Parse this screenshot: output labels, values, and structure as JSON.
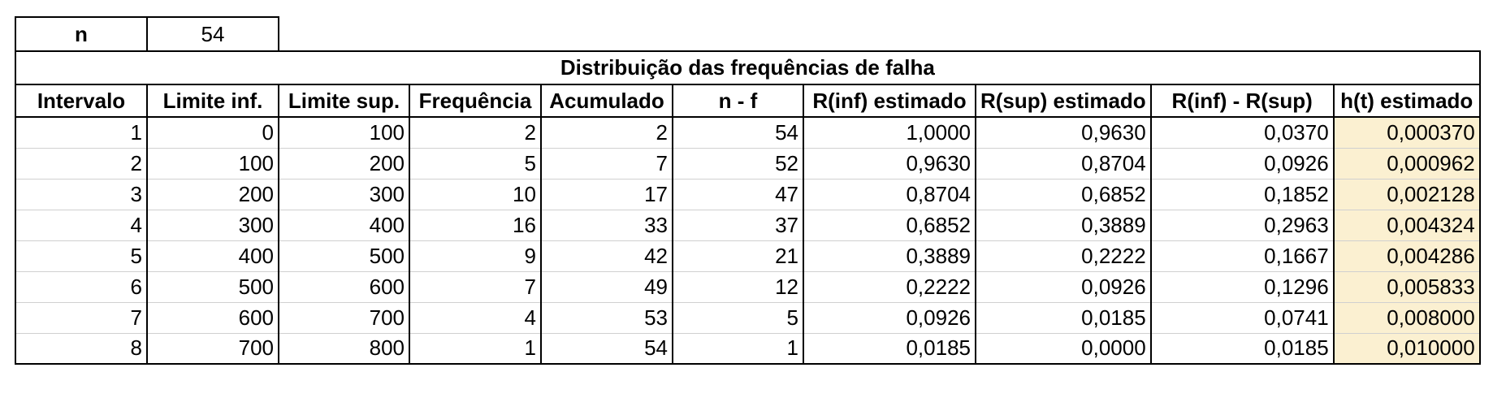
{
  "n_label": "n",
  "n_value": "54",
  "title": "Distribuição das frequências de falha",
  "headers": [
    "Intervalo",
    "Limite inf.",
    "Limite sup.",
    "Frequência",
    "Acumulado",
    "n - f",
    "R(inf) estimado",
    "R(sup) estimado",
    "R(inf) - R(sup)",
    "h(t) estimado"
  ],
  "rows": [
    [
      "1",
      "0",
      "100",
      "2",
      "2",
      "54",
      "1,0000",
      "0,9630",
      "0,0370",
      "0,000370"
    ],
    [
      "2",
      "100",
      "200",
      "5",
      "7",
      "52",
      "0,9630",
      "0,8704",
      "0,0926",
      "0,000962"
    ],
    [
      "3",
      "200",
      "300",
      "10",
      "17",
      "47",
      "0,8704",
      "0,6852",
      "0,1852",
      "0,002128"
    ],
    [
      "4",
      "300",
      "400",
      "16",
      "33",
      "37",
      "0,6852",
      "0,3889",
      "0,2963",
      "0,004324"
    ],
    [
      "5",
      "400",
      "500",
      "9",
      "42",
      "21",
      "0,3889",
      "0,2222",
      "0,1667",
      "0,004286"
    ],
    [
      "6",
      "500",
      "600",
      "7",
      "49",
      "12",
      "0,2222",
      "0,0926",
      "0,1296",
      "0,005833"
    ],
    [
      "7",
      "600",
      "700",
      "4",
      "53",
      "5",
      "0,0926",
      "0,0185",
      "0,0741",
      "0,008000"
    ],
    [
      "8",
      "700",
      "800",
      "1",
      "54",
      "1",
      "0,0185",
      "0,0000",
      "0,0185",
      "0,010000"
    ]
  ],
  "highlight_color": "#fbf0d1"
}
